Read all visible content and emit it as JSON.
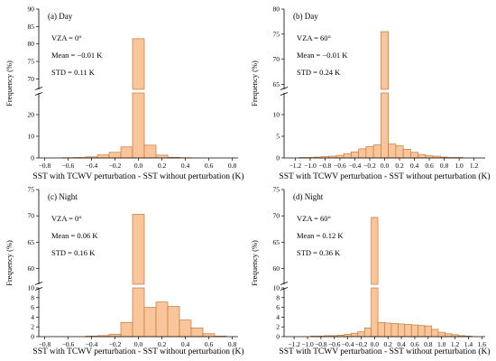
{
  "chart_data": [
    {
      "type": "bar",
      "panel_label": "(a) Day",
      "annotations": [
        "VZA = 0°",
        "Mean = −0.01 K",
        "STD = 0.11 K"
      ],
      "xlabel": "SST with TCWV perturbation - SST without perturbation (K)",
      "ylabel": "Frequency (%)",
      "xlim": [
        -0.85,
        0.85
      ],
      "xticks": [
        -0.8,
        -0.6,
        -0.4,
        -0.2,
        0.0,
        0.2,
        0.4,
        0.6,
        0.8
      ],
      "xtick_labels": [
        "−0.8",
        "−0.6",
        "−0.4",
        "−0.2",
        "0.0",
        "0.2",
        "0.4",
        "0.6",
        "0.8"
      ],
      "bin_width": 0.1,
      "x": [
        -0.6,
        -0.5,
        -0.4,
        -0.3,
        -0.2,
        -0.1,
        0.0,
        0.1,
        0.2,
        0.3,
        0.4
      ],
      "values": [
        0.1,
        0.2,
        0.5,
        1.4,
        2.6,
        5.1,
        81.5,
        5.9,
        1.3,
        0.3,
        0.1
      ],
      "ylim_lower": [
        0,
        30
      ],
      "yticks_lower": [
        0,
        10,
        20
      ],
      "ylim_upper": [
        67,
        90
      ],
      "yticks_upper": [
        70,
        75,
        80,
        85,
        90
      ]
    },
    {
      "type": "bar",
      "panel_label": "(b) Day",
      "annotations": [
        "VZA = 60°",
        "Mean = −0.01 K",
        "STD = 0.24 K"
      ],
      "xlabel": "SST with TCWV perturbation - SST without perturbation (K)",
      "ylabel": "Frequency (%)",
      "xlim": [
        -1.35,
        1.35
      ],
      "xticks": [
        -1.2,
        -1.0,
        -0.8,
        -0.6,
        -0.4,
        -0.2,
        0.0,
        0.2,
        0.4,
        0.6,
        0.8,
        1.0,
        1.2
      ],
      "xtick_labels": [
        "−1.2",
        "−1.0",
        "−0.8",
        "−0.6",
        "−0.4",
        "−0.2",
        "0.0",
        "0.2",
        "0.4",
        "0.6",
        "0.8",
        "1.0",
        "1.2"
      ],
      "bin_width": 0.1,
      "x": [
        -1.1,
        -1.0,
        -0.9,
        -0.8,
        -0.7,
        -0.6,
        -0.5,
        -0.4,
        -0.3,
        -0.2,
        -0.1,
        0.0,
        0.1,
        0.2,
        0.3,
        0.4,
        0.5,
        0.6,
        0.7,
        0.8,
        0.9,
        1.0
      ],
      "values": [
        0.1,
        0.1,
        0.2,
        0.3,
        0.4,
        0.6,
        1.0,
        1.4,
        2.1,
        2.6,
        3.0,
        75.5,
        3.2,
        2.8,
        2.0,
        1.3,
        0.8,
        0.5,
        0.4,
        0.2,
        0.1,
        0.1
      ],
      "ylim_lower": [
        0,
        15
      ],
      "yticks_lower": [
        0,
        5,
        10
      ],
      "ylim_upper": [
        64,
        80
      ],
      "yticks_upper": [
        65,
        70,
        75,
        80
      ]
    },
    {
      "type": "bar",
      "panel_label": "(c) Night",
      "annotations": [
        "VZA = 0°",
        "Mean = 0.06 K",
        "STD = 0.16 K"
      ],
      "xlabel": "SST with TCWV perturbation - SST without perturbation (K)",
      "ylabel": "Frequency (%)",
      "xlim": [
        -0.85,
        0.85
      ],
      "xticks": [
        -0.8,
        -0.6,
        -0.4,
        -0.2,
        0.0,
        0.2,
        0.4,
        0.6,
        0.8
      ],
      "xtick_labels": [
        "−0.8",
        "−0.6",
        "−0.4",
        "−0.2",
        "0.0",
        "0.2",
        "0.4",
        "0.6",
        "0.8"
      ],
      "bin_width": 0.1,
      "x": [
        -0.4,
        -0.3,
        -0.2,
        -0.1,
        0.0,
        0.1,
        0.2,
        0.3,
        0.4,
        0.5,
        0.6,
        0.7
      ],
      "values": [
        0.1,
        0.2,
        0.5,
        2.9,
        70.3,
        6.0,
        7.1,
        6.2,
        3.4,
        1.8,
        0.6,
        0.1
      ],
      "ylim_lower": [
        0,
        10
      ],
      "yticks_lower": [
        0,
        2,
        4,
        6,
        8,
        10
      ],
      "ylim_upper": [
        57,
        75
      ],
      "yticks_upper": [
        60,
        65,
        70,
        75
      ]
    },
    {
      "type": "bar",
      "panel_label": "(d) Night",
      "annotations": [
        "VZA = 60°",
        "Mean = 0.12 K",
        "STD = 0.36 K"
      ],
      "xlabel": "SST with TCWV perturbation - SST without perturbation (K)",
      "ylabel": "Frequency (%)",
      "xlim": [
        -1.35,
        1.65
      ],
      "xticks": [
        -1.2,
        -1.0,
        -0.8,
        -0.6,
        -0.4,
        -0.2,
        0.0,
        0.2,
        0.4,
        0.6,
        0.8,
        1.0,
        1.2,
        1.4,
        1.6
      ],
      "xtick_labels": [
        "−1.2",
        "−1.0",
        "−0.8",
        "−0.6",
        "−0.4",
        "−0.2",
        "0.0",
        "0.2",
        "0.4",
        "0.6",
        "0.8",
        "1.0",
        "1.2",
        "1.4",
        "1.6"
      ],
      "bin_width": 0.1,
      "x": [
        -0.9,
        -0.8,
        -0.7,
        -0.6,
        -0.5,
        -0.4,
        -0.3,
        -0.2,
        -0.1,
        0.0,
        0.1,
        0.2,
        0.3,
        0.4,
        0.5,
        0.6,
        0.7,
        0.8,
        0.9,
        1.0,
        1.1,
        1.2,
        1.3,
        1.4
      ],
      "values": [
        0.1,
        0.1,
        0.2,
        0.2,
        0.3,
        0.5,
        0.7,
        1.0,
        1.8,
        69.7,
        2.9,
        2.8,
        2.7,
        2.6,
        2.5,
        2.4,
        2.3,
        2.2,
        1.5,
        0.9,
        0.6,
        0.4,
        0.2,
        0.1
      ],
      "ylim_lower": [
        0,
        10
      ],
      "yticks_lower": [
        0,
        2,
        4,
        6,
        8,
        10
      ],
      "ylim_upper": [
        57,
        75
      ],
      "yticks_upper": [
        60,
        65,
        70,
        75
      ]
    }
  ]
}
